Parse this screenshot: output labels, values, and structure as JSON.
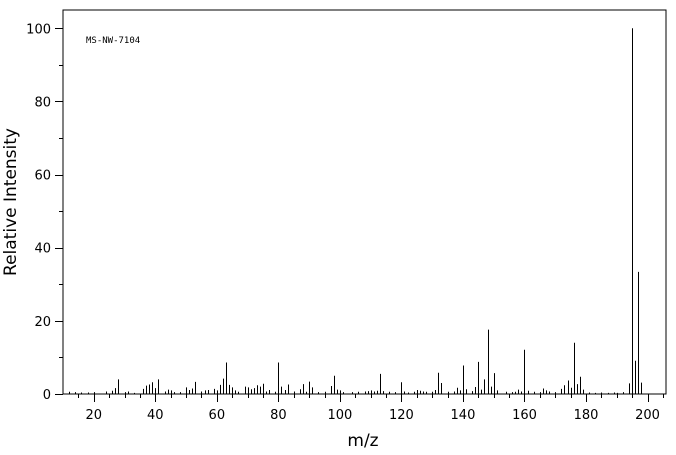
{
  "chart_data": {
    "type": "bar",
    "annotation": "MS-NW-7104",
    "xlabel": "m/z",
    "ylabel": "Relative Intensity",
    "xlim": [
      10,
      206
    ],
    "ylim": [
      0,
      105
    ],
    "x_ticks": [
      20,
      40,
      60,
      80,
      100,
      120,
      140,
      160,
      180,
      200
    ],
    "y_ticks": [
      0,
      20,
      40,
      60,
      80,
      100
    ],
    "grid": false,
    "series": [
      {
        "x": [
          12,
          14,
          16,
          18,
          20,
          24,
          26,
          27,
          28,
          30,
          31,
          33,
          36,
          37,
          38,
          39,
          40,
          41,
          43,
          44,
          45,
          46,
          48,
          50,
          51,
          52,
          53,
          55,
          56,
          57,
          59,
          60,
          61,
          62,
          63,
          64,
          65,
          66,
          67,
          69,
          70,
          71,
          72,
          73,
          74,
          75,
          76,
          77,
          79,
          80,
          81,
          82,
          83,
          85,
          87,
          88,
          89,
          90,
          91,
          93,
          95,
          97,
          98,
          99,
          100,
          101,
          104,
          106,
          108,
          109,
          110,
          111,
          112,
          113,
          114,
          116,
          118,
          120,
          121,
          122,
          124,
          125,
          126,
          127,
          128,
          130,
          131,
          132,
          133,
          135,
          137,
          138,
          139,
          140,
          141,
          143,
          144,
          145,
          146,
          147,
          148,
          149,
          150,
          151,
          154,
          156,
          157,
          158,
          159,
          160,
          161,
          163,
          165,
          166,
          167,
          168,
          170,
          172,
          173,
          174,
          175,
          176,
          177,
          178,
          179,
          181,
          183,
          185,
          187,
          189,
          190,
          192,
          194,
          195,
          196,
          197,
          198
        ],
        "values": [
          0.6,
          0.5,
          0.4,
          0.4,
          0.5,
          0.7,
          0.9,
          1.6,
          4.0,
          0.5,
          0.7,
          0.3,
          1.4,
          2.3,
          2.6,
          3.2,
          1.6,
          4.0,
          0.7,
          1.2,
          1.0,
          0.5,
          0.5,
          1.8,
          1.1,
          1.5,
          3.3,
          0.7,
          1.0,
          1.1,
          1.4,
          1.0,
          2.5,
          4.2,
          8.6,
          2.5,
          1.8,
          1.0,
          0.6,
          2.0,
          1.8,
          1.3,
          1.6,
          2.4,
          2.0,
          2.8,
          0.7,
          1.1,
          0.6,
          8.6,
          2.0,
          1.1,
          2.6,
          0.7,
          1.3,
          2.7,
          0.6,
          3.4,
          1.8,
          0.5,
          0.6,
          2.2,
          5.0,
          1.2,
          1.0,
          0.5,
          0.5,
          0.6,
          0.7,
          0.8,
          1.0,
          0.7,
          0.9,
          5.5,
          0.8,
          0.6,
          0.5,
          3.2,
          0.7,
          0.4,
          0.6,
          1.1,
          0.9,
          0.7,
          0.6,
          0.6,
          1.1,
          5.8,
          3.0,
          0.6,
          0.7,
          1.7,
          1.0,
          7.8,
          1.3,
          0.8,
          1.9,
          8.8,
          1.2,
          4.0,
          17.6,
          2.0,
          5.7,
          1.0,
          0.6,
          0.5,
          0.6,
          1.2,
          0.7,
          12.1,
          0.9,
          0.6,
          0.5,
          1.5,
          1.0,
          0.7,
          0.5,
          1.4,
          2.4,
          3.7,
          1.7,
          14.0,
          2.7,
          4.7,
          1.2,
          0.4,
          0.3,
          0.4,
          0.3,
          0.4,
          0.3,
          0.5,
          2.9,
          100.0,
          9.1,
          33.4,
          3.1
        ]
      }
    ]
  }
}
